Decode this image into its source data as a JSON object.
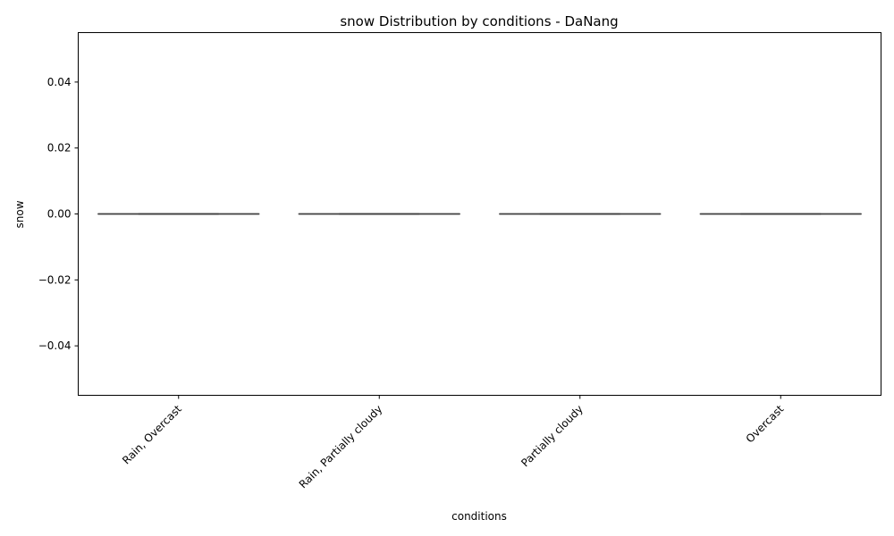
{
  "chart_data": {
    "type": "box",
    "title": "snow Distribution by conditions - DaNang",
    "xlabel": "conditions",
    "ylabel": "snow",
    "categories": [
      "Rain, Overcast",
      "Rain, Partially cloudy",
      "Partially cloudy",
      "Overcast"
    ],
    "boxes": [
      {
        "category": "Rain, Overcast",
        "min": 0,
        "q1": 0,
        "median": 0,
        "q3": 0,
        "max": 0
      },
      {
        "category": "Rain, Partially cloudy",
        "min": 0,
        "q1": 0,
        "median": 0,
        "q3": 0,
        "max": 0
      },
      {
        "category": "Partially cloudy",
        "min": 0,
        "q1": 0,
        "median": 0,
        "q3": 0,
        "max": 0
      },
      {
        "category": "Overcast",
        "min": 0,
        "q1": 0,
        "median": 0,
        "q3": 0,
        "max": 0
      }
    ],
    "ylim": [
      -0.055,
      0.055
    ],
    "yticks": [
      -0.04,
      -0.02,
      0.0,
      0.02,
      0.04
    ],
    "ytick_labels": [
      "−0.04",
      "−0.02",
      "0.00",
      "0.02",
      "0.04"
    ],
    "grid": false,
    "legend": "none",
    "colors": {
      "line": "#3f3f3f",
      "frame": "#000000"
    }
  }
}
